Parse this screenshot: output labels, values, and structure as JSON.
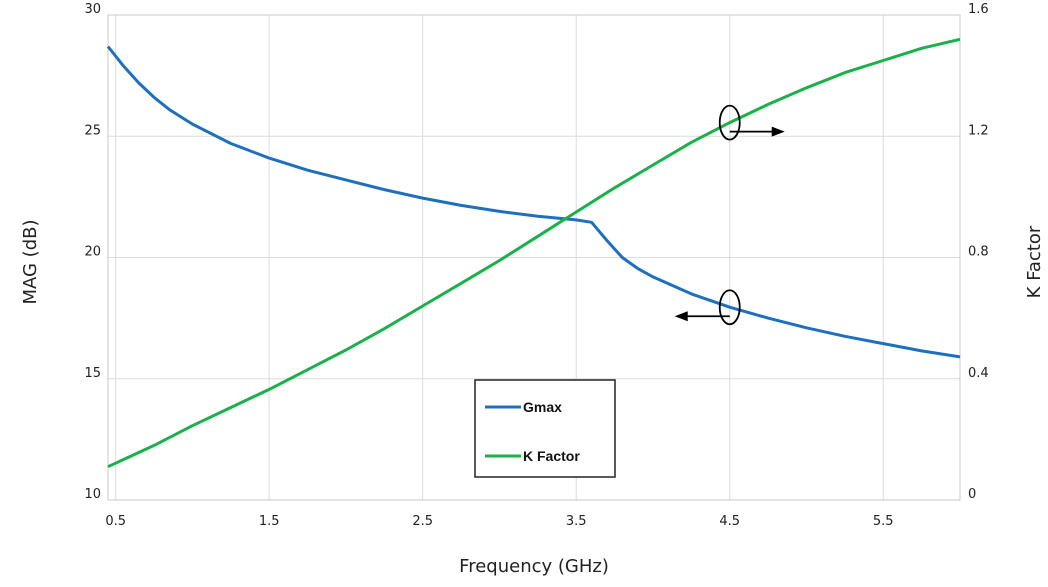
{
  "chart_data": {
    "type": "line",
    "xlabel": "Frequency (GHz)",
    "ylabel": "MAG (dB)",
    "y2label": "K Factor",
    "xlim": [
      0.45,
      6.0
    ],
    "ylim": [
      10,
      30
    ],
    "y2lim": [
      0,
      1.6
    ],
    "x_ticks": [
      "0.5",
      "1.5",
      "2.5",
      "3.5",
      "4.5",
      "5.5"
    ],
    "x_tick_values": [
      0.5,
      1.5,
      2.5,
      3.5,
      4.5,
      5.5
    ],
    "y_ticks": [
      "10",
      "15",
      "20",
      "25",
      "30"
    ],
    "y_tick_values": [
      10,
      15,
      20,
      25,
      30
    ],
    "y2_ticks": [
      "0",
      "0.4",
      "0.8",
      "1.2",
      "1.6"
    ],
    "y2_tick_values": [
      0,
      0.4,
      0.8,
      1.2,
      1.6
    ],
    "grid": true,
    "legend_position": "bottom-center",
    "series": [
      {
        "name": "Gmax",
        "axis": "left",
        "color": "#1f6fbf",
        "x": [
          0.45,
          0.55,
          0.65,
          0.75,
          0.85,
          1.0,
          1.25,
          1.5,
          1.75,
          2.0,
          2.25,
          2.5,
          2.75,
          3.0,
          3.25,
          3.5,
          3.6,
          3.7,
          3.8,
          3.9,
          4.0,
          4.25,
          4.5,
          4.75,
          5.0,
          5.25,
          5.5,
          5.75,
          6.0
        ],
        "values": [
          28.7,
          27.9,
          27.2,
          26.6,
          26.1,
          25.5,
          24.7,
          24.1,
          23.6,
          23.2,
          22.8,
          22.45,
          22.15,
          21.9,
          21.7,
          21.55,
          21.45,
          20.7,
          20.0,
          19.55,
          19.2,
          18.5,
          17.95,
          17.5,
          17.1,
          16.75,
          16.45,
          16.15,
          15.9
        ]
      },
      {
        "name": "K Factor",
        "axis": "right",
        "color": "#1ab04a",
        "x": [
          0.45,
          0.75,
          1.0,
          1.25,
          1.5,
          1.75,
          2.0,
          2.25,
          2.5,
          2.75,
          3.0,
          3.25,
          3.5,
          3.75,
          4.0,
          4.25,
          4.5,
          4.75,
          5.0,
          5.25,
          5.5,
          5.75,
          6.0
        ],
        "values": [
          0.11,
          0.18,
          0.245,
          0.305,
          0.365,
          0.43,
          0.495,
          0.565,
          0.64,
          0.715,
          0.79,
          0.87,
          0.95,
          1.03,
          1.105,
          1.18,
          1.245,
          1.305,
          1.36,
          1.41,
          1.45,
          1.49,
          1.52
        ]
      }
    ],
    "annotations": [
      {
        "marker": "ellipse-with-arrow",
        "series": "K Factor",
        "direction": "right",
        "x": 4.5
      },
      {
        "marker": "ellipse-with-arrow",
        "series": "Gmax",
        "direction": "left",
        "x": 4.5
      }
    ]
  }
}
